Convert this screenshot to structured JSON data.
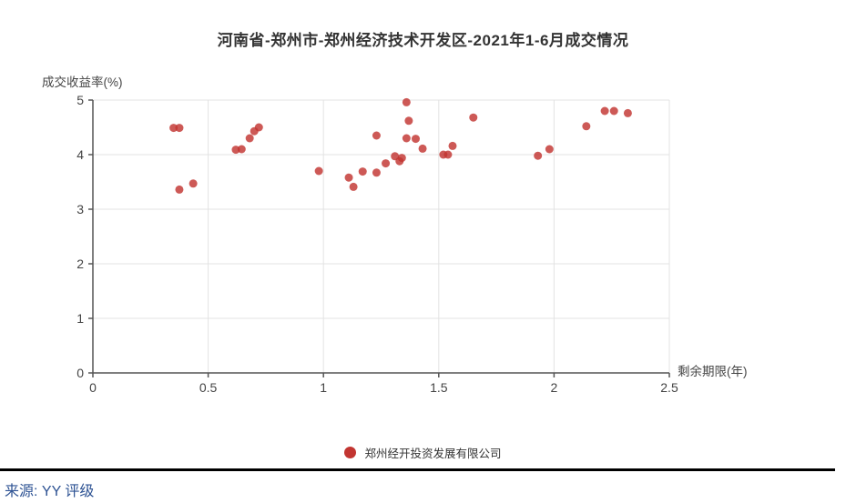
{
  "title": "河南省-郑州市-郑州经济技术开发区-2021年1-6月成交情况",
  "source": {
    "label": "来源: YY 评级"
  },
  "legend": {
    "items": [
      {
        "label": "郑州经开投资发展有限公司",
        "color": "#c23531"
      }
    ]
  },
  "colors": {
    "point_red": "#c23531",
    "axis": "#555555",
    "grid": "#e3e3e3",
    "tick_label": "#444444",
    "title_text": "#333333",
    "source_blue": "#2d5293",
    "rule_black": "#000000"
  },
  "chart_data": {
    "type": "scatter",
    "title": "河南省-郑州市-郑州经济技术开发区-2021年1-6月成交情况",
    "xlabel": "剩余期限(年)",
    "ylabel": "成交收益率(%)",
    "xlim": [
      0,
      2.5
    ],
    "ylim": [
      0,
      5
    ],
    "x_ticks": [
      "0",
      "0.5",
      "1",
      "1.5",
      "2",
      "2.5"
    ],
    "y_ticks": [
      "0",
      "1",
      "2",
      "3",
      "4",
      "5"
    ],
    "grid": true,
    "legend_position": "bottom",
    "series": [
      {
        "name": "郑州经开投资发展有限公司",
        "color": "#c23531",
        "points": [
          [
            0.35,
            4.49
          ],
          [
            0.375,
            4.49
          ],
          [
            0.375,
            3.36
          ],
          [
            0.435,
            3.47
          ],
          [
            0.62,
            4.09
          ],
          [
            0.645,
            4.1
          ],
          [
            0.68,
            4.3
          ],
          [
            0.7,
            4.43
          ],
          [
            0.72,
            4.5
          ],
          [
            0.98,
            3.7
          ],
          [
            1.11,
            3.58
          ],
          [
            1.13,
            3.41
          ],
          [
            1.17,
            3.69
          ],
          [
            1.23,
            3.67
          ],
          [
            1.23,
            4.35
          ],
          [
            1.27,
            3.84
          ],
          [
            1.31,
            3.97
          ],
          [
            1.33,
            3.88
          ],
          [
            1.34,
            3.94
          ],
          [
            1.36,
            4.3
          ],
          [
            1.36,
            4.96
          ],
          [
            1.37,
            4.62
          ],
          [
            1.4,
            4.29
          ],
          [
            1.43,
            4.11
          ],
          [
            1.52,
            4.0
          ],
          [
            1.54,
            4.0
          ],
          [
            1.56,
            4.16
          ],
          [
            1.65,
            4.68
          ],
          [
            1.93,
            3.98
          ],
          [
            1.98,
            4.1
          ],
          [
            2.14,
            4.52
          ],
          [
            2.22,
            4.8
          ],
          [
            2.26,
            4.8
          ],
          [
            2.32,
            4.76
          ]
        ]
      }
    ]
  }
}
